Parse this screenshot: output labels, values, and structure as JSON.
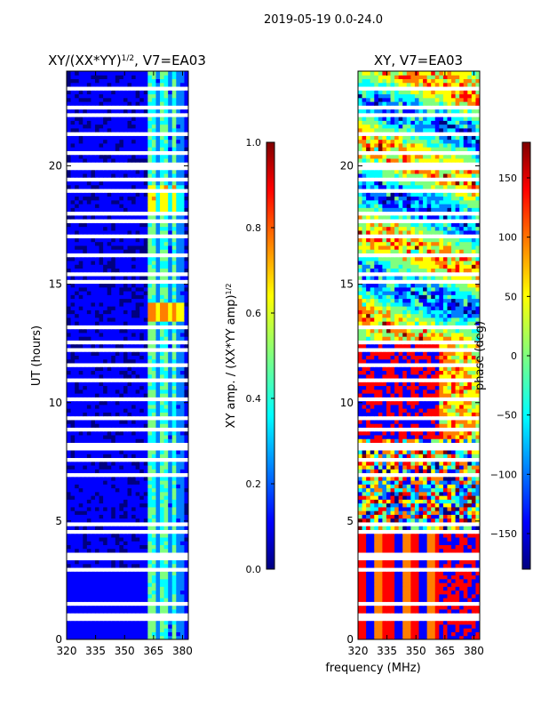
{
  "suptitle": "2019-05-19 0.0-24.0",
  "left_panel": {
    "title": "XY/(XX*YY)^1/2, V7=EA03",
    "ylabel": "UT (hours)"
  },
  "right_panel": {
    "title": "XY, V7=EA03",
    "xlabel": "frequency (MHz)"
  },
  "colorbar_left": {
    "label": "XY amp. / (XX*YY amp)^1/2",
    "ticks": [
      "0.0",
      "0.2",
      "0.4",
      "0.6",
      "0.8",
      "1.0"
    ]
  },
  "colorbar_right": {
    "label": "phase (deg)",
    "ticks": [
      "−150",
      "−100",
      "−50",
      "0",
      "50",
      "100",
      "150"
    ]
  },
  "colors": {
    "jet": [
      "#00007f",
      "#0000ff",
      "#007fff",
      "#00ffff",
      "#7fff7f",
      "#ffff00",
      "#ff7f00",
      "#ff0000",
      "#7f0000"
    ]
  },
  "chart_data": [
    {
      "type": "heatmap",
      "title": "XY/(XX*YY)^1/2, V7=EA03",
      "xlabel": "",
      "ylabel": "UT (hours)",
      "xlim": [
        320,
        383
      ],
      "ylim": [
        0,
        24
      ],
      "x_ticks": [
        320,
        335,
        350,
        365,
        380
      ],
      "y_ticks": [
        0,
        5,
        10,
        15,
        20
      ],
      "colorbar_range": [
        0.0,
        1.0
      ],
      "colorbar_label": "XY amp. / (XX*YY amp)^1/2",
      "features": [
        {
          "desc": "high-amplitude channel band",
          "freq_range": [
            363,
            381
          ],
          "ut_range": [
            0.5,
            23.5
          ]
        },
        {
          "desc": "peak amplitude patch",
          "freq_range": [
            363,
            381
          ],
          "ut_range": [
            13.4,
            14.2
          ],
          "value": 0.8
        }
      ]
    },
    {
      "type": "heatmap",
      "title": "XY, V7=EA03",
      "xlabel": "frequency (MHz)",
      "ylabel": "",
      "xlim": [
        320,
        383
      ],
      "ylim": [
        0,
        24
      ],
      "x_ticks": [
        320,
        335,
        350,
        365,
        380
      ],
      "y_ticks": [
        0,
        5,
        10,
        15,
        20
      ],
      "colorbar_range": [
        -180,
        180
      ],
      "colorbar_label": "phase (deg)"
    }
  ]
}
